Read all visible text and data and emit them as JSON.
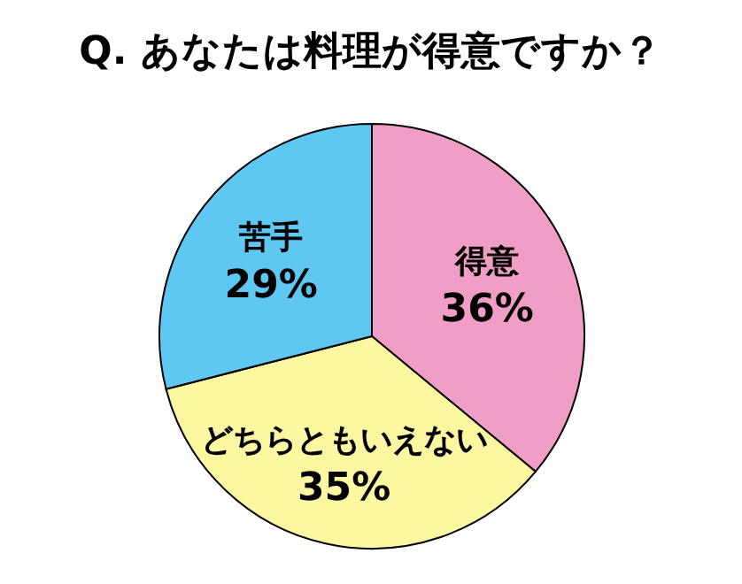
{
  "chart_data": {
    "type": "pie",
    "title": "Q. あなたは料理が得意ですか？",
    "categories": [
      "得意",
      "どちらともいえない",
      "苦手"
    ],
    "values": [
      36,
      35,
      29
    ],
    "colors": [
      "#f19ec6",
      "#fdf7a2",
      "#5ec8f3"
    ],
    "value_labels": [
      "36%",
      "35%",
      "29%"
    ]
  }
}
